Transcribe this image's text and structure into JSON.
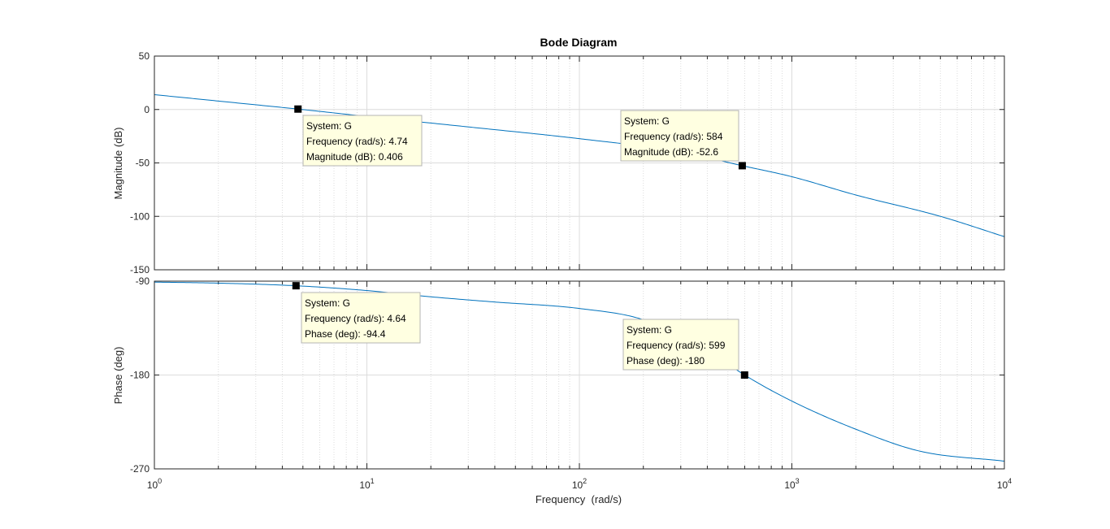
{
  "chart_data": [
    {
      "type": "line",
      "panel": "magnitude",
      "title": "Bode Diagram",
      "xlabel": "Frequency  (rad/s)",
      "ylabel": "Magnitude (dB)",
      "xscale": "log",
      "xlim": [
        1,
        10000
      ],
      "ylim": [
        -150,
        50
      ],
      "yticks": [
        50,
        0,
        -50,
        -100,
        -150
      ],
      "xtick_labels": [
        {
          "base": "10",
          "exp": "0"
        },
        {
          "base": "10",
          "exp": "1"
        },
        {
          "base": "10",
          "exp": "2"
        },
        {
          "base": "10",
          "exp": "3"
        },
        {
          "base": "10",
          "exp": "4"
        }
      ],
      "grid": true,
      "series": [
        {
          "x": [
            1,
            2,
            4.74,
            10,
            30,
            100,
            300,
            584,
            1000,
            2000,
            5000,
            10000
          ],
          "y": [
            13.9,
            7.9,
            0.4,
            -6.5,
            -16.3,
            -27.3,
            -39.7,
            -52.6,
            -62.9,
            -80,
            -100,
            -119
          ]
        }
      ],
      "datatips": [
        {
          "system": "System: G",
          "freq_label": "Frequency (rad/s): 4.74",
          "value_label": "Magnitude (dB): 0.406",
          "x": 4.74,
          "y": 0.406
        },
        {
          "system": "System: G",
          "freq_label": "Frequency (rad/s): 584",
          "value_label": "Magnitude (dB): -52.6",
          "x": 584,
          "y": -52.6
        }
      ]
    },
    {
      "type": "line",
      "panel": "phase",
      "xlabel": "Frequency  (rad/s)",
      "ylabel": "Phase (deg)",
      "xscale": "log",
      "xlim": [
        1,
        10000
      ],
      "ylim": [
        -270,
        -90
      ],
      "yticks": [
        -90,
        -180,
        -270
      ],
      "grid": true,
      "series": [
        {
          "x": [
            1,
            2,
            4.64,
            10,
            20,
            40,
            100,
            200,
            400,
            599,
            1000,
            2000,
            4000,
            10000
          ],
          "y": [
            -90.9,
            -91.9,
            -94.4,
            -99,
            -105,
            -110,
            -116.2,
            -127,
            -156,
            -180,
            -205,
            -232,
            -253,
            -262.6
          ]
        }
      ],
      "datatips": [
        {
          "system": "System: G",
          "freq_label": "Frequency (rad/s): 4.64",
          "value_label": "Phase (deg): -94.4",
          "x": 4.64,
          "y": -94.4
        },
        {
          "system": "System: G",
          "freq_label": "Frequency (rad/s): 599",
          "value_label": "Phase (deg): -180",
          "x": 599,
          "y": -180
        }
      ]
    }
  ],
  "colors": {
    "line": "#0072BD",
    "grid": "#DCDCDC",
    "axis": "#262626",
    "tip_fill": "#FFFFE1",
    "tip_border": "#B4B4B4",
    "marker": "#000000"
  }
}
